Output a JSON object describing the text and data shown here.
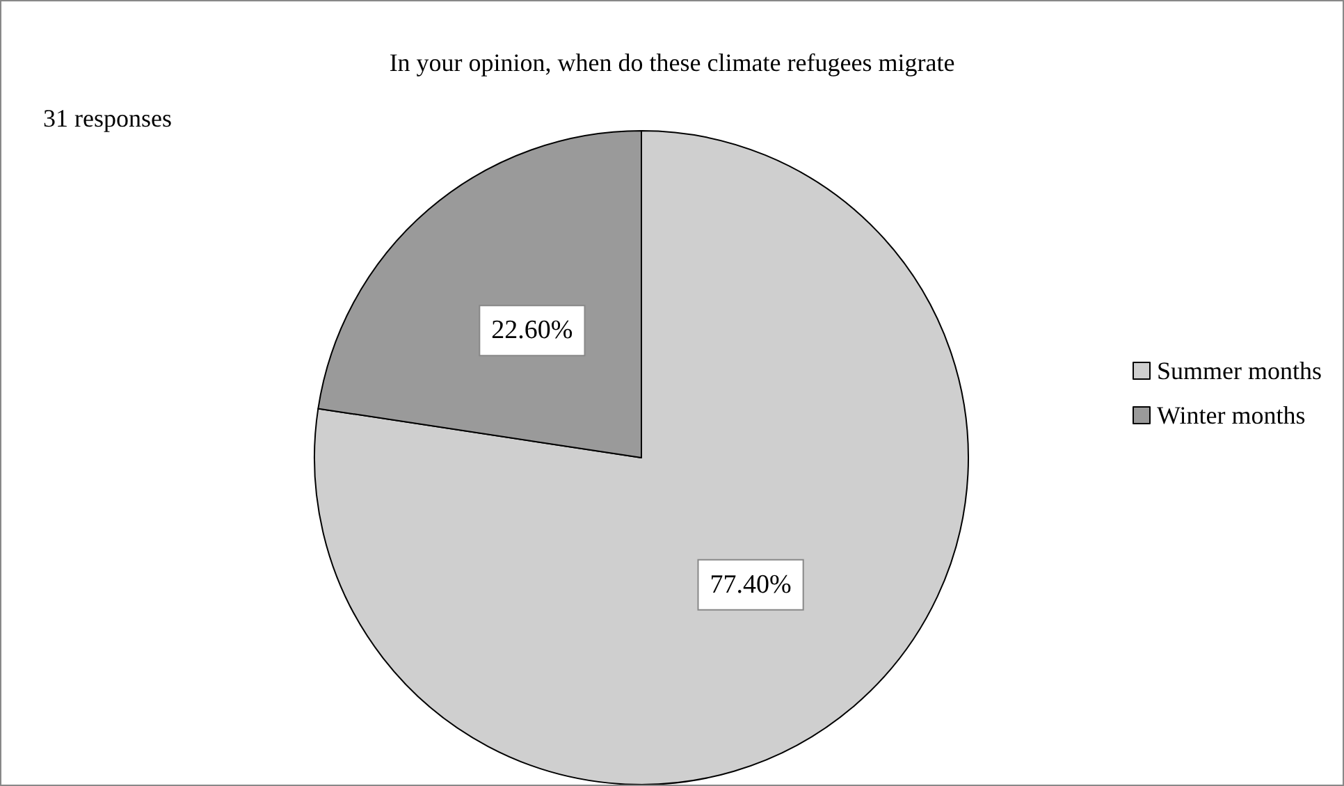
{
  "chart_data": {
    "type": "pie",
    "title": "In your opinion, when do these climate refugees migrate",
    "annotations": [
      "31 responses"
    ],
    "categories": [
      "Summer months",
      "Winter months"
    ],
    "values": [
      77.4,
      22.6
    ],
    "value_labels": [
      "77.40%",
      "22.60%"
    ],
    "colors": [
      "#cfcfcf",
      "#9a9a9a"
    ],
    "legend": "right"
  }
}
